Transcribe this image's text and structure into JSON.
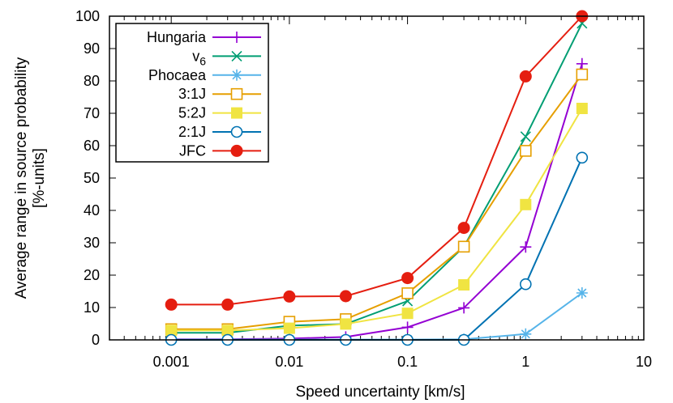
{
  "chart_data": {
    "type": "line",
    "title": "",
    "xlabel": "Speed uncertainty [km/s]",
    "ylabel_lines": [
      "Average range in source probability",
      "[%-units]"
    ],
    "xscale": "log",
    "xlim": [
      0.0003,
      10
    ],
    "ylim": [
      0,
      100
    ],
    "x_ticks": [
      0.001,
      0.01,
      0.1,
      1,
      10
    ],
    "x_tick_labels": [
      "0.001",
      "0.01",
      "0.1",
      "1",
      "10"
    ],
    "y_ticks": [
      0,
      10,
      20,
      30,
      40,
      50,
      60,
      70,
      80,
      90,
      100
    ],
    "y_tick_labels": [
      "0",
      "10",
      "20",
      "30",
      "40",
      "50",
      "60",
      "70",
      "80",
      "90",
      "100"
    ],
    "grid": false,
    "legend_position": "top-left",
    "x": [
      0.001,
      0.003,
      0.01,
      0.03,
      0.1,
      0.3,
      1,
      3
    ],
    "series": [
      {
        "name": "Hungaria",
        "label_main": "Hungaria",
        "label_sub": "",
        "color": "#9400d3",
        "marker": "plus",
        "values": [
          0.2,
          0.2,
          0.4,
          0.9,
          3.9,
          9.9,
          28.7,
          85.3
        ]
      },
      {
        "name": "v6",
        "label_main": "v",
        "label_sub": "6",
        "color": "#009e73",
        "marker": "cross",
        "values": [
          2.2,
          2.2,
          4.4,
          4.9,
          12.0,
          28.8,
          62.8,
          97.8
        ]
      },
      {
        "name": "Phocaea",
        "label_main": "Phocaea",
        "label_sub": "",
        "color": "#56b4e9",
        "marker": "star",
        "values": [
          0.1,
          0.1,
          0.1,
          0.1,
          0.1,
          0.2,
          1.8,
          14.5
        ]
      },
      {
        "name": "3:1J",
        "label_main": "3:1J",
        "label_sub": "",
        "color": "#e69f00",
        "marker": "square-open",
        "values": [
          3.3,
          3.3,
          5.6,
          6.4,
          14.4,
          28.8,
          58.4,
          82.0
        ]
      },
      {
        "name": "5:2J",
        "label_main": "5:2J",
        "label_sub": "",
        "color": "#f0e442",
        "marker": "square-filled",
        "values": [
          2.9,
          2.9,
          3.6,
          4.9,
          8.2,
          17.0,
          41.8,
          71.5
        ]
      },
      {
        "name": "2:1J",
        "label_main": "2:1J",
        "label_sub": "",
        "color": "#0072b2",
        "marker": "circle-open",
        "values": [
          0.0,
          0.0,
          0.0,
          0.0,
          0.0,
          0.0,
          17.2,
          56.3
        ]
      },
      {
        "name": "JFC",
        "label_main": "JFC",
        "label_sub": "",
        "color": "#e51e10",
        "marker": "circle-filled",
        "values": [
          10.9,
          10.9,
          13.4,
          13.5,
          19.1,
          34.6,
          81.4,
          100.0
        ]
      }
    ]
  }
}
